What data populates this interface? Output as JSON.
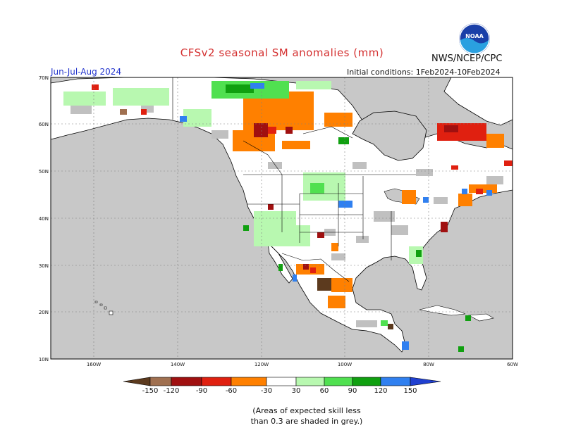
{
  "title": "CFSv2 seasonal SM anomalies (mm)",
  "agency": "NWS/NCEP/CPC",
  "logo_text": "NOAA",
  "season": "Jun-Jul-Aug 2024",
  "initial_conditions": "Initial conditions: 1Feb2024-10Feb2024",
  "lat_labels": [
    "70N",
    "60N",
    "50N",
    "40N",
    "30N",
    "20N",
    "10N"
  ],
  "lon_labels": [
    "160W",
    "140W",
    "120W",
    "100W",
    "80W",
    "60W"
  ],
  "colorbar": {
    "ticks": [
      "-150",
      "-120",
      "-90",
      "-60",
      "-30",
      "30",
      "60",
      "90",
      "120",
      "150"
    ],
    "colors": {
      "lt-150": "#5c3a1e",
      "-150_-120": "#a07050",
      "-120_-90": "#a01010",
      "-90_-60": "#e02010",
      "-60_-30": "#ff8000",
      "-30_30": "#ffffff",
      "30_60": "#b8f8b0",
      "60_90": "#50e050",
      "90_120": "#10a010",
      "120_150": "#3080f0",
      "gt150": "#2040d0"
    }
  },
  "note_line1": "(Areas of expected skill less",
  "note_line2": "than 0.3 are shaded in grey.)",
  "colors": {
    "ocean": "#c8c8c8",
    "land": "#ffffff",
    "low_skill": "#c0c0c0"
  }
}
